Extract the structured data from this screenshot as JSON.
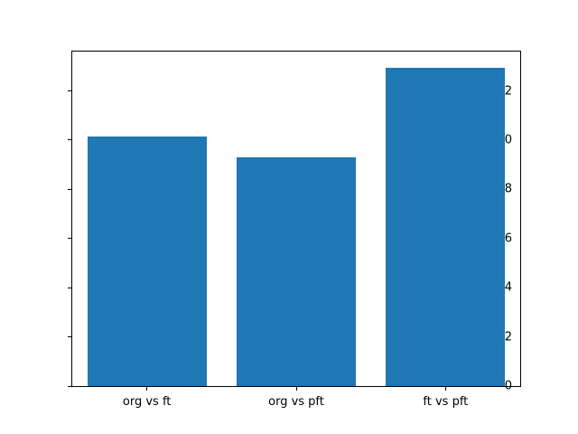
{
  "figure": {
    "background": "#ffffff"
  },
  "chart_data": {
    "type": "bar",
    "categories": [
      "org vs ft",
      "org vs pft",
      "ft vs pft"
    ],
    "values": [
      10.15,
      9.3,
      12.95
    ],
    "title": "",
    "xlabel": "",
    "ylabel": "",
    "ylim": [
      0,
      13.6
    ],
    "yticks": [
      0,
      2,
      4,
      6,
      8,
      10,
      12
    ],
    "bar_color": "#1f77b4",
    "bar_width_fraction": 0.8,
    "grid": false,
    "legend_position": "none",
    "axis_color": "#000000",
    "tick_label_color": "#000000"
  }
}
